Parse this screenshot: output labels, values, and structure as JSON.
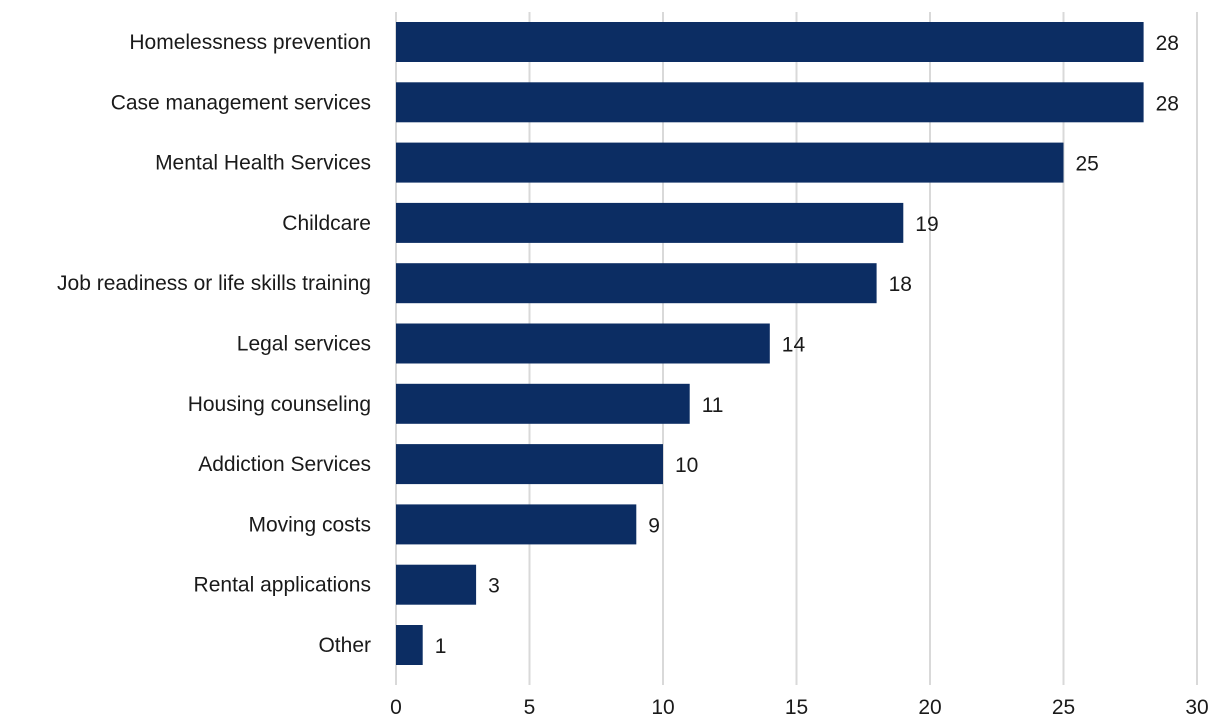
{
  "chart_data": {
    "type": "bar",
    "orientation": "horizontal",
    "categories": [
      "Homelessness prevention",
      "Case management services",
      "Mental Health Services",
      "Childcare",
      "Job readiness or life skills training",
      "Legal services",
      "Housing counseling",
      "Addiction Services",
      "Moving costs",
      "Rental applications",
      "Other"
    ],
    "values": [
      28,
      28,
      25,
      19,
      18,
      14,
      11,
      10,
      9,
      3,
      1
    ],
    "xlim": [
      0,
      30
    ],
    "xticks": [
      0,
      5,
      10,
      15,
      20,
      25,
      30
    ],
    "grid": "vertical",
    "legend": "none",
    "bar_color": "#0c2d63",
    "grid_color": "#d9d9d9",
    "title": "",
    "xlabel": "",
    "ylabel": ""
  }
}
